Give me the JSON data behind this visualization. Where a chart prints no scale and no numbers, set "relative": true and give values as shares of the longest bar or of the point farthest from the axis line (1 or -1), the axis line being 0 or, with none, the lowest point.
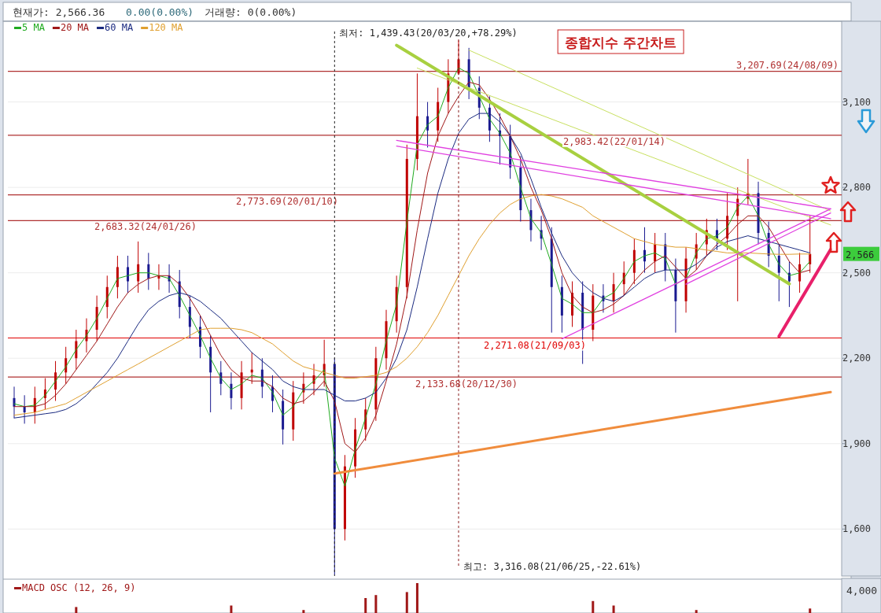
{
  "chart_data": [
    {
      "type": "candlestick",
      "title": "종합지수 주간차트",
      "categories": [
        null,
        null,
        null,
        null,
        null,
        null,
        null,
        null,
        null,
        null,
        null,
        null,
        null,
        null,
        null,
        null,
        null,
        null,
        null,
        null,
        null,
        null,
        null,
        null,
        null,
        null,
        null,
        null,
        null,
        null,
        null,
        null,
        null,
        null,
        null,
        null,
        null,
        null,
        null,
        null,
        null,
        null,
        null,
        null,
        null,
        null,
        null,
        null,
        null,
        null,
        null,
        null,
        null,
        null,
        null,
        null,
        null,
        null,
        null,
        null,
        null,
        null,
        null,
        null,
        null,
        null,
        null,
        null,
        null,
        null,
        null,
        null,
        null,
        null,
        null,
        null,
        null,
        null,
        null,
        null
      ],
      "ohlc": [
        [
          2060,
          2100,
          1990,
          2030
        ],
        [
          2030,
          2070,
          1970,
          2010
        ],
        [
          2010,
          2100,
          1970,
          2060
        ],
        [
          2060,
          2130,
          2020,
          2090
        ],
        [
          2090,
          2190,
          2050,
          2150
        ],
        [
          2150,
          2240,
          2110,
          2200
        ],
        [
          2200,
          2300,
          2160,
          2260
        ],
        [
          2260,
          2340,
          2220,
          2300
        ],
        [
          2300,
          2420,
          2260,
          2380
        ],
        [
          2380,
          2490,
          2340,
          2450
        ],
        [
          2450,
          2560,
          2410,
          2520
        ],
        [
          2520,
          2560,
          2430,
          2470
        ],
        [
          2470,
          2610,
          2430,
          2530
        ],
        [
          2530,
          2570,
          2440,
          2480
        ],
        [
          2480,
          2530,
          2440,
          2490
        ],
        [
          2490,
          2530,
          2430,
          2470
        ],
        [
          2470,
          2510,
          2340,
          2380
        ],
        [
          2380,
          2420,
          2270,
          2310
        ],
        [
          2310,
          2350,
          2200,
          2240
        ],
        [
          2240,
          2280,
          2010,
          2150
        ],
        [
          2150,
          2190,
          2070,
          2110
        ],
        [
          2110,
          2150,
          2020,
          2060
        ],
        [
          2060,
          2190,
          2020,
          2150
        ],
        [
          2150,
          2220,
          2110,
          2160
        ],
        [
          2160,
          2200,
          2060,
          2100
        ],
        [
          2100,
          2140,
          2010,
          2050
        ],
        [
          2050,
          2090,
          1897,
          1950
        ],
        [
          1950,
          2120,
          1910,
          2080
        ],
        [
          2080,
          2150,
          2040,
          2110
        ],
        [
          2110,
          2180,
          2070,
          2140
        ],
        [
          2140,
          2265,
          2100,
          2180
        ],
        [
          2180,
          2200,
          1439.43,
          1600
        ],
        [
          1600,
          1860,
          1560,
          1820
        ],
        [
          1820,
          1990,
          1780,
          1950
        ],
        [
          1950,
          2060,
          1910,
          2020
        ],
        [
          2020,
          2240,
          1980,
          2200
        ],
        [
          2200,
          2370,
          2160,
          2330
        ],
        [
          2330,
          2490,
          2290,
          2450
        ],
        [
          2450,
          2950,
          2410,
          2900
        ],
        [
          2900,
          3200,
          2860,
          3050
        ],
        [
          3050,
          3100,
          2940,
          3000
        ],
        [
          3000,
          3150,
          2960,
          3100
        ],
        [
          3100,
          3250,
          3060,
          3200
        ],
        [
          3200,
          3316.08,
          3195,
          3250
        ],
        [
          3250,
          3290,
          3110,
          3150
        ],
        [
          3150,
          3190,
          3040,
          3080
        ],
        [
          3080,
          3120,
          2960,
          3000
        ],
        [
          3000,
          3060,
          2880,
          2980
        ],
        [
          2980,
          3020,
          2830,
          2870
        ],
        [
          2870,
          2910,
          2680,
          2720
        ],
        [
          2720,
          2760,
          2610,
          2650
        ],
        [
          2650,
          2700,
          2580,
          2620
        ],
        [
          2620,
          2660,
          2290,
          2450
        ],
        [
          2450,
          2490,
          2290,
          2350
        ],
        [
          2350,
          2470,
          2310,
          2430
        ],
        [
          2430,
          2470,
          2180,
          2300
        ],
        [
          2300,
          2460,
          2260,
          2420
        ],
        [
          2420,
          2460,
          2360,
          2400
        ],
        [
          2400,
          2500,
          2360,
          2460
        ],
        [
          2460,
          2540,
          2420,
          2500
        ],
        [
          2500,
          2620,
          2460,
          2580
        ],
        [
          2580,
          2660,
          2500,
          2540
        ],
        [
          2540,
          2640,
          2500,
          2600
        ],
        [
          2600,
          2640,
          2470,
          2510
        ],
        [
          2510,
          2550,
          2290,
          2400
        ],
        [
          2400,
          2590,
          2360,
          2550
        ],
        [
          2550,
          2640,
          2510,
          2600
        ],
        [
          2600,
          2690,
          2560,
          2650
        ],
        [
          2650,
          2690,
          2580,
          2620
        ],
        [
          2620,
          2780,
          2580,
          2700
        ],
        [
          2700,
          2800,
          2400,
          2760
        ],
        [
          2760,
          2900,
          2740,
          2780
        ],
        [
          2780,
          2820,
          2600,
          2640
        ],
        [
          2640,
          2680,
          2520,
          2560
        ],
        [
          2560,
          2600,
          2400,
          2500
        ],
        [
          2500,
          2540,
          2380,
          2470
        ],
        [
          2470,
          2570,
          2430,
          2530
        ],
        [
          2530,
          2700,
          2500,
          2566.36
        ],
        null,
        null
      ],
      "series": [
        {
          "name": "5 MA",
          "type": "line",
          "color": "#1faa1f",
          "values": [
            2040,
            2030,
            2035,
            2070,
            2120,
            2170,
            2230,
            2280,
            2340,
            2410,
            2480,
            2490,
            2500,
            2500,
            2490,
            2480,
            2420,
            2350,
            2280,
            2200,
            2130,
            2090,
            2110,
            2140,
            2130,
            2080,
            2000,
            2030,
            2090,
            2120,
            2160,
            1850,
            1750,
            1880,
            1990,
            2110,
            2260,
            2390,
            2680,
            2950,
            3020,
            3050,
            3150,
            3220,
            3200,
            3120,
            3040,
            2990,
            2920,
            2800,
            2690,
            2640,
            2530,
            2410,
            2390,
            2360,
            2360,
            2410,
            2430,
            2480,
            2540,
            2560,
            2570,
            2550,
            2460,
            2480,
            2570,
            2620,
            2630,
            2660,
            2730,
            2770,
            2700,
            2600,
            2530,
            2490,
            2500,
            2540,
            null,
            null
          ]
        },
        {
          "name": "20 MA",
          "type": "line",
          "color": "#a01818",
          "values": [
            2030,
            2030,
            2030,
            2040,
            2070,
            2110,
            2160,
            2210,
            2260,
            2320,
            2380,
            2430,
            2460,
            2480,
            2490,
            2490,
            2460,
            2410,
            2350,
            2280,
            2210,
            2160,
            2130,
            2120,
            2120,
            2100,
            2060,
            2040,
            2050,
            2080,
            2120,
            2050,
            1900,
            1870,
            1920,
            2000,
            2120,
            2250,
            2420,
            2650,
            2850,
            2980,
            3060,
            3120,
            3170,
            3160,
            3110,
            3050,
            2980,
            2900,
            2800,
            2720,
            2620,
            2500,
            2420,
            2380,
            2360,
            2370,
            2390,
            2420,
            2470,
            2510,
            2540,
            2560,
            2520,
            2480,
            2510,
            2560,
            2600,
            2630,
            2670,
            2700,
            2700,
            2660,
            2600,
            2540,
            2500,
            2510,
            null,
            null
          ]
        },
        {
          "name": "60 MA",
          "type": "line",
          "color": "#1a2a80",
          "values": [
            1990,
            1995,
            2000,
            2005,
            2010,
            2020,
            2040,
            2070,
            2110,
            2150,
            2200,
            2260,
            2320,
            2370,
            2400,
            2420,
            2430,
            2420,
            2400,
            2370,
            2340,
            2300,
            2260,
            2220,
            2190,
            2160,
            2120,
            2100,
            2090,
            2090,
            2090,
            2070,
            2050,
            2050,
            2060,
            2080,
            2130,
            2200,
            2300,
            2450,
            2620,
            2780,
            2900,
            2990,
            3040,
            3060,
            3060,
            3030,
            2980,
            2920,
            2830,
            2730,
            2640,
            2560,
            2500,
            2460,
            2430,
            2410,
            2400,
            2420,
            2450,
            2480,
            2500,
            2510,
            2510,
            2510,
            2530,
            2560,
            2590,
            2610,
            2620,
            2630,
            2620,
            2610,
            2600,
            2590,
            2580,
            2570,
            null,
            null
          ]
        },
        {
          "name": "120 MA",
          "type": "line",
          "color": "#e0a030",
          "values": [
            2000,
            2005,
            2010,
            2020,
            2030,
            2040,
            2060,
            2080,
            2100,
            2120,
            2140,
            2160,
            2180,
            2200,
            2220,
            2240,
            2260,
            2280,
            2300,
            2305,
            2305,
            2305,
            2300,
            2290,
            2270,
            2250,
            2220,
            2190,
            2170,
            2160,
            2150,
            2140,
            2130,
            2130,
            2135,
            2140,
            2150,
            2170,
            2200,
            2240,
            2290,
            2350,
            2420,
            2490,
            2560,
            2620,
            2670,
            2710,
            2740,
            2760,
            2770,
            2775,
            2770,
            2760,
            2745,
            2730,
            2700,
            2680,
            2660,
            2640,
            2620,
            2610,
            2600,
            2595,
            2590,
            2590,
            2585,
            2580,
            2575,
            2570,
            2570,
            2570,
            2568,
            2566,
            2565,
            2565,
            2566,
            2566,
            null,
            null
          ]
        },
        {
          "type": "line",
          "color": "#f08c3c",
          "values": [
            null,
            null,
            null,
            null,
            null,
            null,
            null,
            null,
            null,
            null,
            null,
            null,
            null,
            null,
            null,
            null,
            null,
            null,
            null,
            null,
            null,
            null,
            null,
            null,
            null,
            null,
            null,
            null,
            null,
            null,
            null,
            1795,
            null,
            null,
            null,
            null,
            null,
            null,
            null,
            null,
            null,
            null,
            null,
            null,
            null,
            null,
            null,
            null,
            null,
            null,
            null,
            null,
            null,
            null,
            null,
            null,
            null,
            null,
            null,
            null,
            null,
            null,
            null,
            null,
            null,
            null,
            null,
            null,
            null,
            null,
            null,
            null,
            null,
            null,
            null,
            null,
            null,
            null,
            null,
            2081
          ]
        },
        {
          "type": "line",
          "color": "#a8d040",
          "values": [
            null,
            null,
            null,
            null,
            null,
            null,
            null,
            null,
            null,
            null,
            null,
            null,
            null,
            null,
            null,
            null,
            null,
            null,
            null,
            null,
            null,
            null,
            null,
            null,
            null,
            null,
            null,
            null,
            null,
            null,
            null,
            null,
            null,
            null,
            null,
            null,
            null,
            3299,
            null,
            null,
            null,
            null,
            null,
            null,
            null,
            null,
            null,
            null,
            null,
            null,
            null,
            null,
            null,
            null,
            null,
            null,
            null,
            null,
            null,
            null,
            null,
            null,
            null,
            null,
            null,
            null,
            null,
            null,
            null,
            null,
            null,
            null,
            null,
            null,
            null,
            2461,
            null,
            null,
            null,
            null
          ]
        },
        {
          "type": "line",
          "color": "#c8e060",
          "values": [
            null,
            null,
            null,
            null,
            null,
            null,
            null,
            null,
            null,
            null,
            null,
            null,
            null,
            null,
            null,
            null,
            null,
            null,
            null,
            null,
            null,
            null,
            null,
            null,
            null,
            null,
            null,
            null,
            null,
            null,
            null,
            null,
            null,
            null,
            null,
            null,
            null,
            null,
            null,
            3219,
            null,
            null,
            null,
            null,
            null,
            null,
            null,
            null,
            null,
            null,
            null,
            null,
            null,
            null,
            null,
            null,
            null,
            null,
            null,
            null,
            null,
            null,
            null,
            null,
            null,
            null,
            null,
            null,
            null,
            null,
            null,
            null,
            null,
            null,
            null,
            null,
            null,
            null,
            null,
            2668
          ]
        },
        {
          "type": "line",
          "color": "#c8e060",
          "values": [
            null,
            null,
            null,
            null,
            null,
            null,
            null,
            null,
            null,
            null,
            null,
            null,
            null,
            null,
            null,
            null,
            null,
            null,
            null,
            null,
            null,
            null,
            null,
            null,
            null,
            null,
            null,
            null,
            null,
            null,
            null,
            null,
            null,
            null,
            null,
            null,
            null,
            null,
            null,
            null,
            null,
            null,
            null,
            null,
            3282,
            null,
            null,
            null,
            null,
            null,
            null,
            null,
            null,
            null,
            null,
            null,
            null,
            null,
            null,
            null,
            null,
            null,
            null,
            null,
            null,
            null,
            null,
            null,
            null,
            null,
            null,
            null,
            null,
            null,
            null,
            null,
            null,
            null,
            null,
            2717
          ]
        },
        {
          "type": "line",
          "color": "#e040e0",
          "values": [
            null,
            null,
            null,
            null,
            null,
            null,
            null,
            null,
            null,
            null,
            null,
            null,
            null,
            null,
            null,
            null,
            null,
            null,
            null,
            null,
            null,
            null,
            null,
            null,
            null,
            null,
            null,
            null,
            null,
            null,
            null,
            null,
            null,
            null,
            null,
            null,
            null,
            2965,
            null,
            null,
            null,
            null,
            null,
            null,
            null,
            null,
            null,
            null,
            null,
            null,
            null,
            null,
            null,
            null,
            null,
            null,
            null,
            null,
            null,
            null,
            null,
            null,
            null,
            null,
            null,
            null,
            null,
            null,
            null,
            null,
            null,
            null,
            null,
            null,
            null,
            null,
            null,
            null,
            null,
            2725
          ]
        },
        {
          "type": "line",
          "color": "#e040e0",
          "values": [
            null,
            null,
            null,
            null,
            null,
            null,
            null,
            null,
            null,
            null,
            null,
            null,
            null,
            null,
            null,
            null,
            null,
            null,
            null,
            null,
            null,
            null,
            null,
            null,
            null,
            null,
            null,
            null,
            null,
            null,
            null,
            null,
            null,
            null,
            null,
            null,
            null,
            2945,
            null,
            null,
            null,
            null,
            null,
            null,
            null,
            null,
            null,
            null,
            null,
            null,
            null,
            null,
            null,
            null,
            null,
            null,
            null,
            null,
            null,
            null,
            null,
            null,
            null,
            null,
            null,
            null,
            null,
            null,
            null,
            null,
            null,
            null,
            null,
            null,
            null,
            null,
            null,
            null,
            null,
            2690
          ]
        },
        {
          "type": "line",
          "color": "#e040e0",
          "values": [
            null,
            null,
            null,
            null,
            null,
            null,
            null,
            null,
            null,
            null,
            null,
            null,
            null,
            null,
            null,
            null,
            null,
            null,
            null,
            null,
            null,
            null,
            null,
            null,
            null,
            null,
            null,
            null,
            null,
            null,
            null,
            null,
            null,
            null,
            null,
            null,
            null,
            null,
            null,
            null,
            null,
            null,
            null,
            null,
            null,
            null,
            null,
            null,
            null,
            null,
            null,
            null,
            null,
            2268,
            null,
            null,
            null,
            null,
            null,
            null,
            null,
            null,
            null,
            null,
            null,
            null,
            null,
            null,
            null,
            null,
            null,
            null,
            null,
            null,
            null,
            null,
            null,
            null,
            null,
            2725
          ]
        },
        {
          "type": "line",
          "color": "#e040e0",
          "values": [
            null,
            null,
            null,
            null,
            null,
            null,
            null,
            null,
            null,
            null,
            null,
            null,
            null,
            null,
            null,
            null,
            null,
            null,
            null,
            null,
            null,
            null,
            null,
            null,
            null,
            null,
            null,
            null,
            null,
            null,
            null,
            null,
            null,
            null,
            null,
            null,
            null,
            null,
            null,
            null,
            null,
            null,
            null,
            null,
            null,
            null,
            null,
            null,
            null,
            null,
            null,
            null,
            null,
            null,
            null,
            null,
            null,
            null,
            null,
            null,
            null,
            null,
            null,
            null,
            null,
            2460,
            null,
            null,
            null,
            null,
            null,
            null,
            null,
            null,
            null,
            null,
            null,
            null,
            null,
            2710
          ]
        },
        {
          "type": "line",
          "color": "#e8206a",
          "values": [
            null,
            null,
            null,
            null,
            null,
            null,
            null,
            null,
            null,
            null,
            null,
            null,
            null,
            null,
            null,
            null,
            null,
            null,
            null,
            null,
            null,
            null,
            null,
            null,
            null,
            null,
            null,
            null,
            null,
            null,
            null,
            null,
            null,
            null,
            null,
            null,
            null,
            null,
            null,
            null,
            null,
            null,
            null,
            null,
            null,
            null,
            null,
            null,
            null,
            null,
            null,
            null,
            null,
            null,
            null,
            null,
            null,
            null,
            null,
            null,
            null,
            null,
            null,
            null,
            null,
            null,
            null,
            null,
            null,
            null,
            null,
            null,
            null,
            null,
            2277,
            null,
            null,
            null,
            null,
            2582
          ]
        }
      ],
      "ylim": [
        1435,
        3320
      ],
      "yticks": [
        {
          "value": 1600,
          "label": "1,600"
        },
        {
          "value": 1900,
          "label": "1,900"
        },
        {
          "value": 2200,
          "label": "2,200"
        },
        {
          "value": 2500,
          "label": "2,500"
        },
        {
          "value": 2800,
          "label": "2,800"
        },
        {
          "value": 3100,
          "label": "3,100"
        }
      ],
      "ref_lines": [
        {
          "axis": "y",
          "value": 3207.69,
          "label": "3,207.69(24/08/09)",
          "color": "#b03030"
        },
        {
          "axis": "y",
          "value": 2983.42,
          "label": "2,983.42(22/01/14)",
          "color": "#b03030"
        },
        {
          "axis": "y",
          "value": 2773.69,
          "label": "2,773.69(20/01/10)",
          "color": "#b03030"
        },
        {
          "axis": "y",
          "value": 2683.32,
          "label": "2,683.32(24/01/26)",
          "color": "#b03030"
        },
        {
          "axis": "y",
          "value": 2271.08,
          "label": "2,271.08(21/09/03)",
          "color": "#e00000"
        },
        {
          "axis": "y",
          "value": 2133.68,
          "label": "2,133.68(20/12/30)",
          "color": "#b03030"
        }
      ],
      "grid": "y",
      "legend": "top left",
      "annotations": [
        "현재가: 2,566.36",
        "0.00(0.00%)",
        "거래량: 0(0.00%)",
        "최저: 1,439.43(20/03/20,+78.29%)",
        "최고: 3,316.08(21/06/25,-22.61%)",
        "2,566"
      ]
    },
    {
      "type": "bar",
      "relative": true,
      "categories": [
        null,
        null,
        null,
        null,
        null,
        null,
        null,
        null,
        null,
        null,
        null,
        null,
        null,
        null,
        null,
        null,
        null,
        null,
        null,
        null,
        null,
        null,
        null,
        null,
        null,
        null,
        null,
        null,
        null,
        null,
        null,
        null,
        null,
        null,
        null,
        null,
        null,
        null,
        null,
        null,
        null,
        null,
        null,
        null,
        null,
        null,
        null,
        null,
        null,
        null,
        null,
        null,
        null,
        null,
        null,
        null,
        null,
        null,
        null,
        null,
        null,
        null,
        null,
        null,
        null,
        null,
        null,
        null,
        null,
        null,
        null,
        null,
        null,
        null,
        null,
        null,
        null,
        null,
        null,
        null
      ],
      "series": [
        {
          "name": "MACD OSC (12, 26, 9)",
          "color": "#a01818",
          "values": [
            null,
            null,
            null,
            null,
            null,
            null,
            0.2,
            null,
            null,
            null,
            null,
            null,
            null,
            null,
            null,
            null,
            null,
            null,
            null,
            null,
            null,
            0.25,
            null,
            null,
            null,
            null,
            null,
            null,
            0.1,
            null,
            null,
            null,
            null,
            null,
            0.5,
            0.6,
            null,
            null,
            0.7,
            1,
            null,
            null,
            null,
            null,
            null,
            null,
            null,
            null,
            null,
            null,
            null,
            null,
            null,
            null,
            null,
            null,
            0.4,
            null,
            0.25,
            null,
            null,
            null,
            null,
            null,
            null,
            null,
            0.1,
            null,
            null,
            null,
            null,
            null,
            null,
            null,
            null,
            null,
            null,
            0.15,
            null,
            null
          ]
        }
      ],
      "legend": "top left",
      "annotations": [
        "4,000"
      ]
    }
  ]
}
